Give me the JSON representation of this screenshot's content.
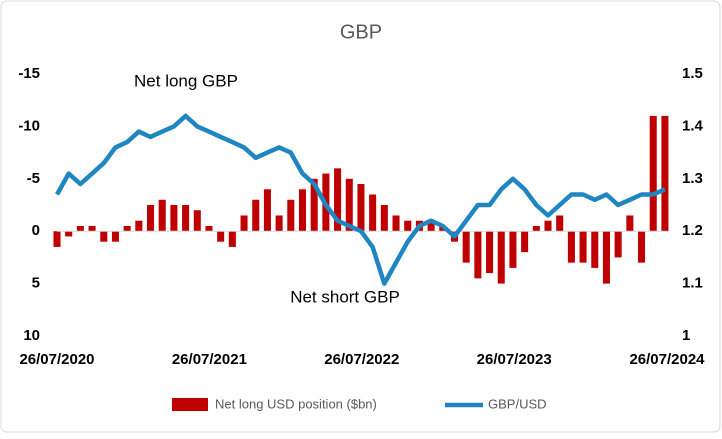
{
  "chart_data": {
    "type": "bar-line",
    "title": "GBP",
    "x": [
      "26/07/2020",
      "23/08/2020",
      "20/09/2020",
      "18/10/2020",
      "15/11/2020",
      "13/12/2020",
      "10/01/2021",
      "07/02/2021",
      "07/03/2021",
      "04/04/2021",
      "02/05/2021",
      "30/05/2021",
      "27/06/2021",
      "25/07/2021",
      "22/08/2021",
      "19/09/2021",
      "17/10/2021",
      "14/11/2021",
      "12/12/2021",
      "09/01/2022",
      "06/02/2022",
      "06/03/2022",
      "03/04/2022",
      "01/05/2022",
      "29/05/2022",
      "26/06/2022",
      "24/07/2022",
      "21/08/2022",
      "18/09/2022",
      "16/10/2022",
      "13/11/2022",
      "11/12/2022",
      "08/01/2023",
      "05/02/2023",
      "05/03/2023",
      "02/04/2023",
      "30/04/2023",
      "28/05/2023",
      "25/06/2023",
      "23/07/2023",
      "20/08/2023",
      "17/09/2023",
      "15/10/2023",
      "12/11/2023",
      "10/12/2023",
      "07/01/2024",
      "04/02/2024",
      "03/03/2024",
      "31/03/2024",
      "28/04/2024",
      "26/05/2024",
      "23/06/2024",
      "21/07/2024"
    ],
    "series": [
      {
        "name": "Net long USD position ($bn)",
        "type": "bar",
        "color": "#c00000",
        "axis": "y",
        "values": [
          1.5,
          0.5,
          -0.5,
          -0.5,
          1,
          1,
          -0.5,
          -1,
          -2.5,
          -3,
          -2.5,
          -2.5,
          -2,
          -0.5,
          1,
          1.5,
          -1.5,
          -3,
          -4,
          -1.5,
          -3,
          -4,
          -5,
          -5.5,
          -6,
          -5,
          -4.5,
          -3.5,
          -2.5,
          -1.5,
          -1,
          -1,
          -1,
          -0.5,
          1,
          3,
          4.5,
          4,
          5,
          3.5,
          2,
          -0.5,
          -1,
          -1.5,
          3,
          3,
          3.5,
          5,
          2.5,
          -1.5,
          3,
          -11,
          -11
        ]
      },
      {
        "name": "GBP/USD",
        "type": "line",
        "color": "#1f86c2",
        "axis": "y2",
        "values": [
          1.27,
          1.31,
          1.29,
          1.31,
          1.33,
          1.36,
          1.37,
          1.39,
          1.38,
          1.39,
          1.4,
          1.42,
          1.4,
          1.39,
          1.38,
          1.37,
          1.36,
          1.34,
          1.35,
          1.36,
          1.35,
          1.31,
          1.29,
          1.25,
          1.22,
          1.21,
          1.2,
          1.17,
          1.1,
          1.14,
          1.18,
          1.21,
          1.22,
          1.21,
          1.19,
          1.22,
          1.25,
          1.25,
          1.28,
          1.3,
          1.28,
          1.25,
          1.23,
          1.25,
          1.27,
          1.27,
          1.26,
          1.27,
          1.25,
          1.26,
          1.27,
          1.27,
          1.28
        ]
      }
    ],
    "xlim": [
      "26/07/2020",
      "26/07/2024"
    ],
    "xticks": [
      "26/07/2020",
      "26/07/2021",
      "26/07/2022",
      "26/07/2023",
      "26/07/2024"
    ],
    "ylim": [
      -15,
      10
    ],
    "y_inverted": true,
    "yticks": [
      -15,
      -10,
      -5,
      0,
      5,
      10
    ],
    "y2lim": [
      1,
      1.5
    ],
    "y2ticks": [
      1.5,
      1.4,
      1.3,
      1.2,
      1.1,
      1
    ],
    "annotations": [
      "Net long GBP",
      "Net short GBP"
    ],
    "legend": "bottom"
  }
}
